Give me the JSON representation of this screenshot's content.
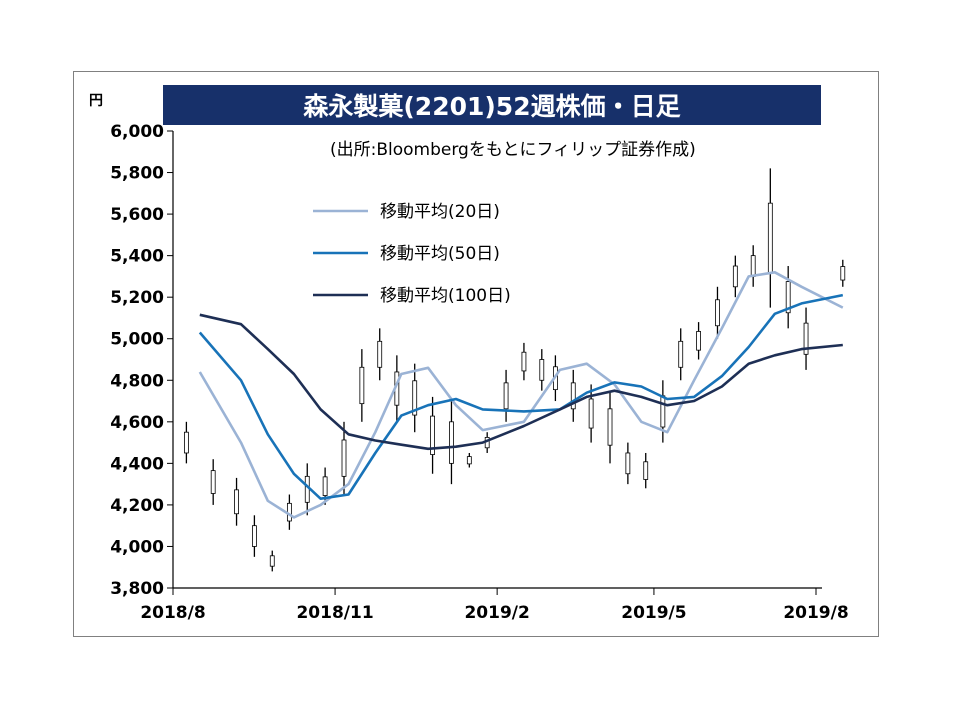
{
  "chart_data": {
    "type": "line",
    "title": "森永製菓(2201)52週株価・日足",
    "y_unit": "円",
    "source_note": "(出所:Bloombergをもとにフィリップ証券作成)",
    "ylim": [
      3800,
      6000
    ],
    "y_ticks": [
      "3,800",
      "4,000",
      "4,200",
      "4,400",
      "4,600",
      "4,800",
      "5,000",
      "5,200",
      "5,400",
      "5,600",
      "5,800",
      "6,000"
    ],
    "x_ticks": [
      "2018/8",
      "2018/11",
      "2019/2",
      "2019/5",
      "2019/8"
    ],
    "grid": false,
    "legend_position": "top-center",
    "price": {
      "style": "daily bars (high-low)",
      "color": "#000000",
      "x": [
        "2018/8",
        "2018/8",
        "2018/9",
        "2018/9",
        "2018/9",
        "2018/10",
        "2018/10",
        "2018/10",
        "2018/11",
        "2018/11",
        "2018/11",
        "2018/12",
        "2018/12",
        "2018/12",
        "2019/1",
        "2019/1",
        "2019/1",
        "2019/2",
        "2019/2",
        "2019/2",
        "2019/3",
        "2019/3",
        "2019/3",
        "2019/4",
        "2019/4",
        "2019/4",
        "2019/5",
        "2019/5",
        "2019/5",
        "2019/6",
        "2019/6",
        "2019/6",
        "2019/7",
        "2019/7",
        "2019/7",
        "2019/8"
      ],
      "high": [
        4600,
        4420,
        4330,
        4150,
        3980,
        4250,
        4400,
        4380,
        4600,
        4950,
        5050,
        4920,
        4880,
        4720,
        4700,
        4450,
        4550,
        4850,
        4980,
        4950,
        4920,
        4850,
        4780,
        4750,
        4500,
        4450,
        4800,
        5050,
        5080,
        5250,
        5400,
        5450,
        5820,
        5350,
        5150,
        5380
      ],
      "low": [
        4400,
        4200,
        4100,
        3950,
        3880,
        4080,
        4150,
        4200,
        4250,
        4600,
        4800,
        4600,
        4550,
        4350,
        4300,
        4380,
        4450,
        4600,
        4800,
        4750,
        4700,
        4600,
        4500,
        4400,
        4300,
        4280,
        4500,
        4800,
        4900,
        5000,
        5200,
        5250,
        5150,
        5050,
        4850,
        5250
      ]
    },
    "series": [
      {
        "name": "移動平均(20日)",
        "color": "#9bb3d5",
        "x": [
          "2018/8",
          "2018/9",
          "2018/9",
          "2018/10",
          "2018/10",
          "2018/11",
          "2018/11",
          "2018/12",
          "2018/12",
          "2019/1",
          "2019/1",
          "2019/2",
          "2019/3",
          "2019/3",
          "2019/4",
          "2019/4",
          "2019/5",
          "2019/5",
          "2019/6",
          "2019/6",
          "2019/7",
          "2019/7",
          "2019/8"
        ],
        "values": [
          4840,
          4500,
          4220,
          4140,
          4200,
          4300,
          4550,
          4830,
          4860,
          4680,
          4560,
          4600,
          4850,
          4880,
          4780,
          4600,
          4550,
          4800,
          5050,
          5300,
          5320,
          5250,
          5150
        ]
      },
      {
        "name": "移動平均(50日)",
        "color": "#1873b8",
        "x": [
          "2018/8",
          "2018/9",
          "2018/9",
          "2018/10",
          "2018/10",
          "2018/11",
          "2018/11",
          "2018/12",
          "2018/12",
          "2019/1",
          "2019/1",
          "2019/2",
          "2019/3",
          "2019/3",
          "2019/4",
          "2019/4",
          "2019/5",
          "2019/5",
          "2019/6",
          "2019/6",
          "2019/7",
          "2019/7",
          "2019/8"
        ],
        "values": [
          5030,
          4800,
          4540,
          4350,
          4230,
          4250,
          4450,
          4630,
          4680,
          4710,
          4660,
          4650,
          4660,
          4740,
          4790,
          4770,
          4710,
          4720,
          4820,
          4960,
          5120,
          5170,
          5210
        ]
      },
      {
        "name": "移動平均(100日)",
        "color": "#1e2f55",
        "x": [
          "2018/8",
          "2018/9",
          "2018/9",
          "2018/10",
          "2018/10",
          "2018/11",
          "2018/11",
          "2018/12",
          "2018/12",
          "2019/1",
          "2019/1",
          "2019/2",
          "2019/3",
          "2019/3",
          "2019/4",
          "2019/4",
          "2019/5",
          "2019/5",
          "2019/6",
          "2019/6",
          "2019/7",
          "2019/7",
          "2019/8"
        ],
        "values": [
          5115,
          5070,
          4950,
          4830,
          4660,
          4540,
          4510,
          4490,
          4470,
          4480,
          4500,
          4580,
          4660,
          4720,
          4750,
          4720,
          4680,
          4700,
          4770,
          4880,
          4920,
          4950,
          4970
        ]
      }
    ]
  }
}
